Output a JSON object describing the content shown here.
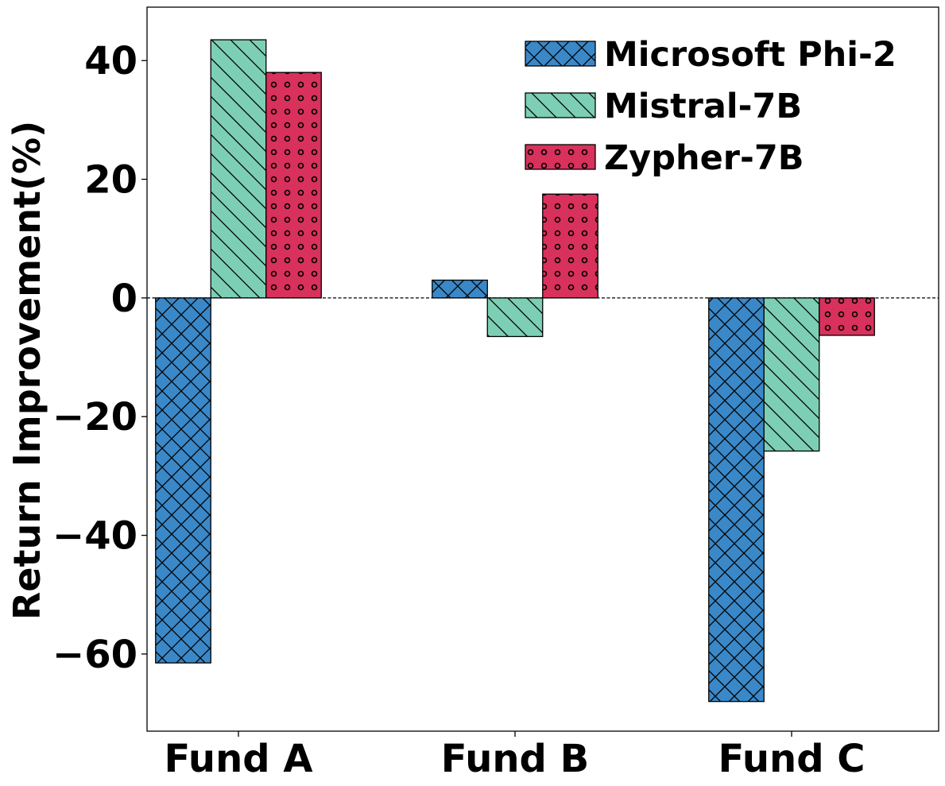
{
  "chart_data": {
    "type": "bar",
    "title": "",
    "xlabel": "",
    "ylabel": "Return Improvement(%)",
    "categories": [
      "Fund A",
      "Fund B",
      "Fund C"
    ],
    "ylim": [
      -73,
      49
    ],
    "yticks": [
      -60,
      -40,
      -20,
      0,
      20,
      40
    ],
    "ytick_labels": [
      "−60",
      "−40",
      "−20",
      "0",
      "20",
      "40"
    ],
    "zero_line": true,
    "grid": false,
    "legend_position": "top-right",
    "series": [
      {
        "name": "Microsoft Phi-2",
        "values": [
          -61.5,
          3.0,
          -68.0
        ],
        "color": "#3a88c8",
        "pattern": "crosshatch"
      },
      {
        "name": "Mistral-7B",
        "values": [
          43.5,
          -6.5,
          -25.8
        ],
        "color": "#7ccfb4",
        "pattern": "backslash"
      },
      {
        "name": "Zypher-7B",
        "values": [
          38.0,
          17.5,
          -6.3
        ],
        "color": "#d8315b",
        "pattern": "circles"
      }
    ]
  }
}
